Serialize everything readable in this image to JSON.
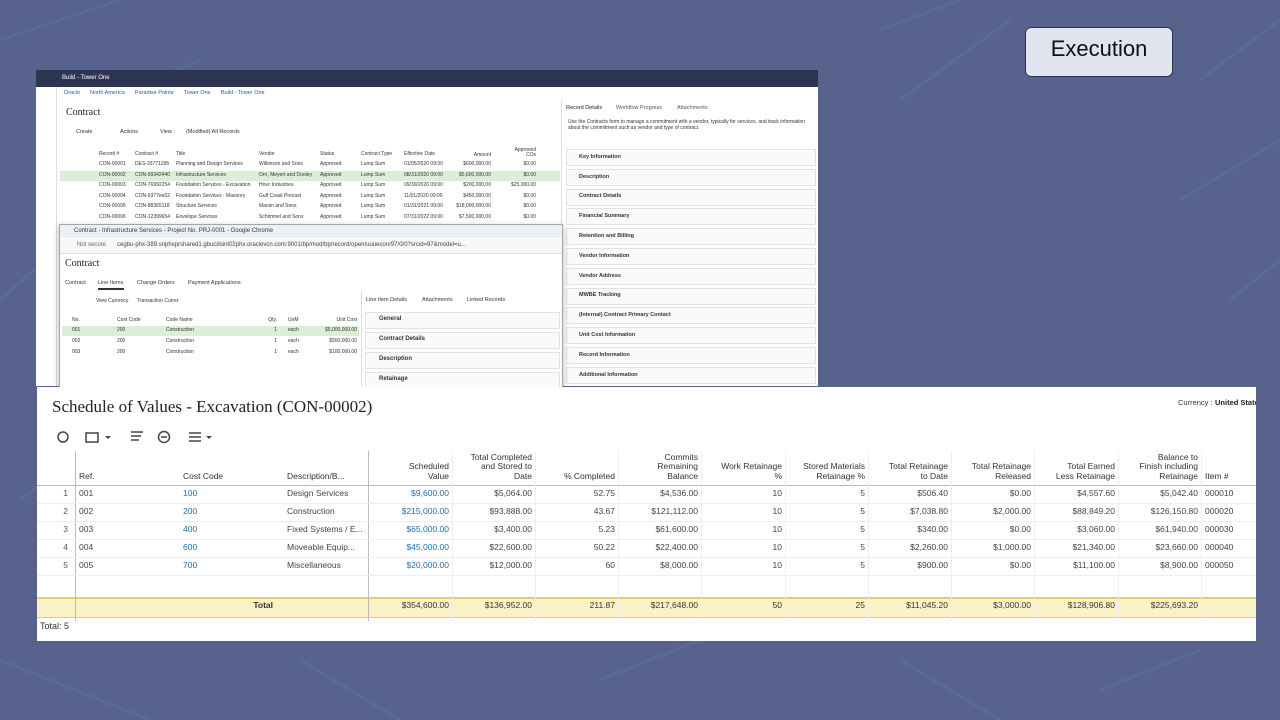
{
  "badge": "Execution",
  "contract_window": {
    "tab": "Build - Tower One",
    "breadcrumb": [
      "Oracle",
      "North America",
      "Paradise Pointe",
      "Tower One",
      "Build - Tower One"
    ],
    "title": "Contract",
    "toolbar": [
      "Create",
      "Actions",
      "View :",
      "(Modified) All Records"
    ],
    "columns": [
      "Record #",
      "Contract #",
      "Title",
      "Vendor",
      "Status",
      "Contract Type",
      "Effective Date",
      "Amount",
      "Approved\nCOs"
    ],
    "rows": [
      [
        "CON-00001",
        "DES-33771295",
        "Planning and Design Services",
        "Wilkinson and Sons",
        "Approved",
        "Lump Sum",
        "01/05/2020 09:00",
        "$600,000.00",
        "$0.00"
      ],
      [
        "CON-00002",
        "CON-99342440",
        "Infrastructure Services",
        "Orn, Meyert and Dooley",
        "Approved",
        "Lump Sum",
        "08/31/2020 09:00",
        "$5,600,000.00",
        "$0.00"
      ],
      [
        "CON-00003",
        "CON-76992254",
        "Foundation Services - Excavation",
        "Hovc Industries",
        "Approved",
        "Lump Sum",
        "09/30/2020 09:00",
        "$200,000.00",
        "$25,000.00"
      ],
      [
        "CON-00004",
        "CON-9377ee02",
        "Foundation Services - Masonry",
        "Gulf Coast Precast",
        "Approved",
        "Lump Sum",
        "11/01/2020 09:00",
        "$450,000.00",
        "$0.00"
      ],
      [
        "CON-00005",
        "CON-88365118",
        "Structure Services",
        "Marvin and Sons",
        "Approved",
        "Lump Sum",
        "01/31/2021 09:00",
        "$18,000,000.00",
        "$0.00"
      ],
      [
        "CON-00006",
        "CON-12399654",
        "Envelope Services",
        "Schimmel and Sons",
        "Approved",
        "Lump Sum",
        "07/31/2022 09:00",
        "$7,500,000.00",
        "$0.00"
      ]
    ],
    "details_tabs": [
      "Record Details",
      "Workflow Progress",
      "Attachments"
    ],
    "details_intro": "Use the Contracts form to manage a commitment with a vendor, typically for services, and track information about the commitment such as vendor and type of contract.",
    "sections": [
      "Key Information",
      "Description",
      "Contract Details",
      "Financial Summary",
      "Retention and Billing",
      "Vendor Information",
      "Vendor Address",
      "MWBE Tracking",
      "(Internal) Contract Primary Contact",
      "Unit Cost Information",
      "Record Information",
      "Additional Information"
    ]
  },
  "popup": {
    "window_title": "Contract - Infrastructure Services - Project No. PRJ-0001 - Google Chrome",
    "security": "Not secure",
    "url": "cegbu-phx-389.snphxprshared1.gbucdsint02phx.oraclevcn.com:9001/bp/mod/bp/record/open/uuuecon/97/0/0?srcid=97&model=u...",
    "title": "Contract",
    "tabs": [
      "Contract",
      "Line Items",
      "Change Orders",
      "Payment Applications"
    ],
    "toolbar": [
      "View Currency",
      "Transaction Currer"
    ],
    "columns": [
      "No.",
      "Cost Code",
      "Code Name",
      "Qty.",
      "UoM",
      "Unit Cost"
    ],
    "rows": [
      [
        "001",
        "200",
        "Construction",
        "1",
        "each",
        "$5,000,000.00"
      ],
      [
        "002",
        "200",
        "Construction",
        "1",
        "each",
        "$500,000.00"
      ],
      [
        "003",
        "200",
        "Construction",
        "1",
        "each",
        "$100,000.00"
      ]
    ],
    "details_tabs": [
      "Line Item Details",
      "Attachments",
      "Linked Records"
    ],
    "sections": [
      "General",
      "Contract Details",
      "Description",
      "Retainage"
    ]
  },
  "schedule": {
    "title": "Schedule of Values - Excavation (CON-00002)",
    "currency_label": "Currency :",
    "currency": "United State",
    "columns": [
      "Ref.",
      "Cost Code",
      "Description/B...",
      "Scheduled\nValue",
      "Total Completed\nand Stored to\nDate",
      "% Completed",
      "Commits\nRemaining\nBalance",
      "Work Retainage\n%",
      "Stored Materials\nRetainage %",
      "Total Retainage\nto Date",
      "Total Retainage\nReleased",
      "Total Earned\nLess Retainage",
      "Balance to\nFinish including\nRetainage",
      "Item #"
    ],
    "rows": [
      {
        "index": "1",
        "cells": [
          "001",
          "100",
          "Design Services",
          "$9,600.00",
          "$5,064.00",
          "52.75",
          "$4,536.00",
          "10",
          "5",
          "$506.40",
          "$0.00",
          "$4,557.60",
          "$5,042.40",
          "000010"
        ]
      },
      {
        "index": "2",
        "cells": [
          "002",
          "200",
          "Construction",
          "$215,000.00",
          "$93,888.00",
          "43.67",
          "$121,112.00",
          "10",
          "5",
          "$7,038.80",
          "$2,000.00",
          "$88,849.20",
          "$126,150.80",
          "000020"
        ]
      },
      {
        "index": "3",
        "cells": [
          "003",
          "400",
          "Fixed Systems / E...",
          "$65,000.00",
          "$3,400.00",
          "5.23",
          "$61,600.00",
          "10",
          "5",
          "$340.00",
          "$0.00",
          "$3,060.00",
          "$61,940.00",
          "000030"
        ]
      },
      {
        "index": "4",
        "cells": [
          "004",
          "600",
          "Moveable Equip...",
          "$45,000.00",
          "$22,600.00",
          "50.22",
          "$22,400.00",
          "10",
          "5",
          "$2,260.00",
          "$1,000.00",
          "$21,340.00",
          "$23,660.00",
          "000040"
        ]
      },
      {
        "index": "5",
        "cells": [
          "005",
          "700",
          "Miscellaneous",
          "$20,000.00",
          "$12,000.00",
          "60",
          "$8,000.00",
          "10",
          "5",
          "$900.00",
          "$0.00",
          "$11,100.00",
          "$8,900.00",
          "000050"
        ]
      }
    ],
    "total_label": "Total",
    "totals": [
      "$354,600.00",
      "$136,952.00",
      "211.87",
      "$217,648.00",
      "50",
      "25",
      "$11,045.20",
      "$3,000.00",
      "$128,906.80",
      "$225,693.20"
    ],
    "footer": "Total: 5"
  }
}
